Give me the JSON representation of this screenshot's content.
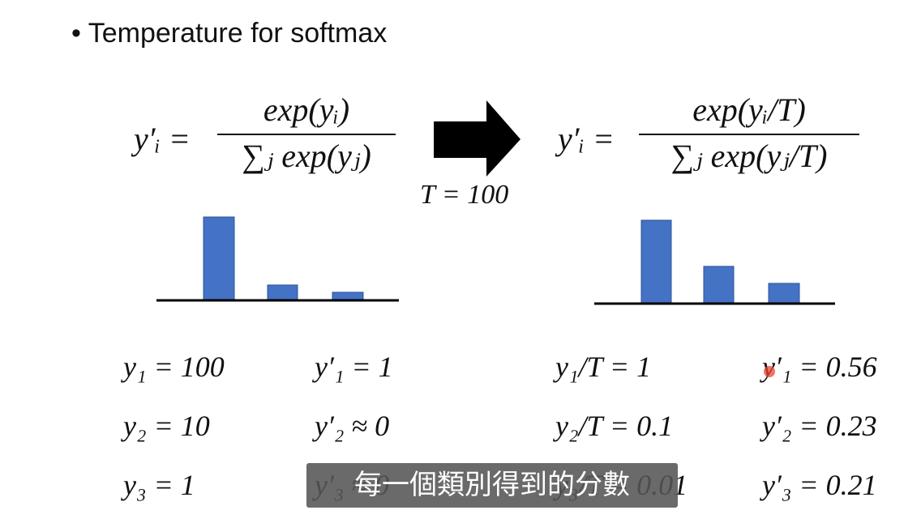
{
  "bullet": "Temperature for softmax",
  "left_formula": {
    "lhs": "y′ᵢ =",
    "numerator": "exp(yᵢ)",
    "denominator": "∑ⱼ exp(yⱼ)"
  },
  "arrow_label": "T = 100",
  "right_formula": {
    "lhs": "y′ᵢ =",
    "numerator": "exp(yᵢ/T)",
    "denominator": "∑ⱼ exp(yⱼ/T)"
  },
  "left_equations": [
    [
      "y₁ = 100",
      "y′₁ = 1"
    ],
    [
      "y₂ = 10",
      "y′₂ ≈ 0"
    ],
    [
      "y₃ = 1",
      "y′₃ ≈ 0"
    ]
  ],
  "right_equations": [
    [
      "y₁/T = 1",
      "y′₁ = 0.56"
    ],
    [
      "y₂/T = 0.1",
      "y′₂ = 0.23"
    ],
    [
      "y₃/T = 0.01",
      "y′₃ = 0.21"
    ]
  ],
  "caption": "每一個類別得到的分數"
}
